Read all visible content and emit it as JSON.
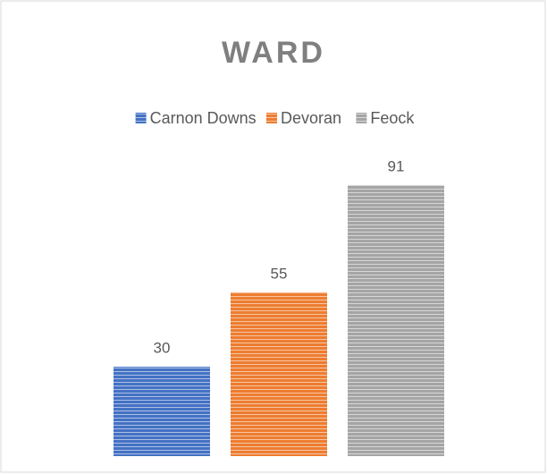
{
  "chart_data": {
    "type": "bar",
    "title": "WARD",
    "categories": [
      null
    ],
    "series": [
      {
        "name": "Carnon Downs",
        "color": "#4472c4",
        "values": [
          30
        ]
      },
      {
        "name": "Devoran",
        "color": "#ed7d31",
        "values": [
          55
        ]
      },
      {
        "name": "Feock",
        "color": "#a5a5a5",
        "values": [
          91
        ]
      }
    ],
    "ylim": [
      0,
      100
    ],
    "legend": "top",
    "grid": false
  }
}
